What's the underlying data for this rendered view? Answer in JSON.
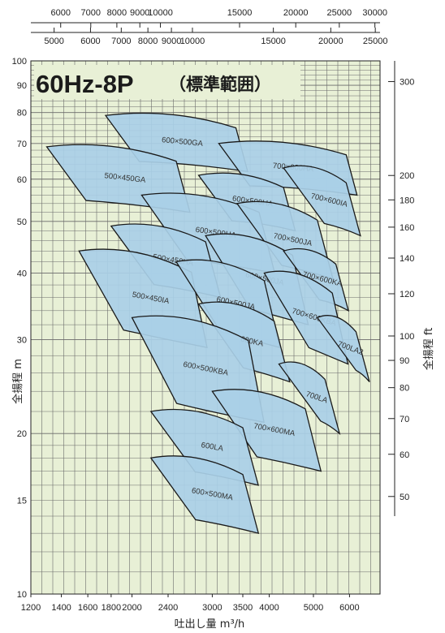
{
  "chart_data": {
    "type": "area",
    "title": "60Hz-8P",
    "subtitle": "（標準範囲）",
    "xlabel": "吐出し量 m³/h",
    "ylabel_left": "全揚程 m",
    "ylabel_right": "全揚程 ft",
    "x_scale": "log",
    "y_scale": "log",
    "xlim": [
      1200,
      7000
    ],
    "ylim": [
      10,
      100
    ],
    "grid": true,
    "x_ticks_bottom": [
      {
        "value": 1200,
        "label": "1200"
      },
      {
        "value": 1400,
        "label": "1400"
      },
      {
        "value": 1600,
        "label": "1600"
      },
      {
        "value": 1800,
        "label": "1800"
      },
      {
        "value": 2000,
        "label": "2000"
      },
      {
        "value": 2400,
        "label": "2400"
      },
      {
        "value": 3000,
        "label": "3000"
      },
      {
        "value": 3500,
        "label": "3500"
      },
      {
        "value": 4000,
        "label": "4000"
      },
      {
        "value": 5000,
        "label": "5000"
      },
      {
        "value": 6000,
        "label": "6000"
      }
    ],
    "y_ticks_left": [
      {
        "value": 10,
        "label": "10"
      },
      {
        "value": 15,
        "label": "15"
      },
      {
        "value": 20,
        "label": "20"
      },
      {
        "value": 30,
        "label": "30"
      },
      {
        "value": 40,
        "label": "40"
      },
      {
        "value": 50,
        "label": "50"
      },
      {
        "value": 60,
        "label": "60"
      },
      {
        "value": 70,
        "label": "70"
      },
      {
        "value": 80,
        "label": "80"
      },
      {
        "value": 90,
        "label": "90"
      },
      {
        "value": 100,
        "label": "100"
      }
    ],
    "top_axis_upper": {
      "unit_label": "",
      "ticks": [
        {
          "label": "6000",
          "value": 6000
        },
        {
          "label": "7000",
          "value": 7000
        },
        {
          "label": "8000",
          "value": 8000
        },
        {
          "label": "9000",
          "value": 9000
        },
        {
          "label": "10000",
          "value": 10000
        },
        {
          "label": "15000",
          "value": 15000
        },
        {
          "label": "20000",
          "value": 20000
        },
        {
          "label": "25000",
          "value": 25000
        },
        {
          "label": "30000",
          "value": 30000
        }
      ]
    },
    "top_axis_lower": {
      "unit_label": "",
      "ticks": [
        {
          "label": "5000",
          "value": 5000
        },
        {
          "label": "6000",
          "value": 6000
        },
        {
          "label": "7000",
          "value": 7000
        },
        {
          "label": "8000",
          "value": 8000
        },
        {
          "label": "9000",
          "value": 9000
        },
        {
          "label": "10000",
          "value": 10000
        },
        {
          "label": "15000",
          "value": 15000
        },
        {
          "label": "20000",
          "value": 20000
        },
        {
          "label": "25000",
          "value": 25000
        }
      ]
    },
    "right_axis_ft": [
      {
        "value": 50,
        "label": "50"
      },
      {
        "value": 60,
        "label": "60"
      },
      {
        "value": 70,
        "label": "70"
      },
      {
        "value": 80,
        "label": "80"
      },
      {
        "value": 90,
        "label": "90"
      },
      {
        "value": 100,
        "label": "100"
      },
      {
        "value": 120,
        "label": "120"
      },
      {
        "value": 140,
        "label": "140"
      },
      {
        "value": 160,
        "label": "160"
      },
      {
        "value": 180,
        "label": "180"
      },
      {
        "value": 200,
        "label": "200"
      },
      {
        "value": 300,
        "label": "300"
      }
    ],
    "regions": [
      {
        "name": "600×500GA",
        "q": [
          1750,
          3380
        ],
        "h": [
          62,
          79
        ]
      },
      {
        "name": "500×450GA",
        "q": [
          1300,
          2500
        ],
        "h": [
          52,
          69
        ]
      },
      {
        "name": "700×600HA",
        "q": [
          3100,
          5900
        ],
        "h": [
          56,
          70
        ]
      },
      {
        "name": "600×500HA",
        "q": [
          2800,
          4300
        ],
        "h": [
          48,
          61
        ]
      },
      {
        "name": "700×600IA",
        "q": [
          4300,
          5900
        ],
        "h": [
          47,
          63
        ]
      },
      {
        "name": "600×500HA",
        "q": [
          2100,
          3800
        ],
        "h": [
          40,
          56
        ]
      },
      {
        "name": "700×500JA",
        "q": [
          3400,
          5100
        ],
        "h": [
          39,
          54
        ]
      },
      {
        "name": "500×450HA",
        "q": [
          1800,
          2900
        ],
        "h": [
          36,
          49
        ]
      },
      {
        "name": "600×500JA",
        "q": [
          2900,
          4500
        ],
        "h": [
          32,
          47
        ]
      },
      {
        "name": "500×450IA",
        "q": [
          1530,
          2700
        ],
        "h": [
          29,
          44
        ]
      },
      {
        "name": "600×500JA",
        "q": [
          2500,
          3900
        ],
        "h": [
          29,
          42
        ]
      },
      {
        "name": "700×600KA",
        "q": [
          4300,
          5600
        ],
        "h": [
          34,
          44
        ]
      },
      {
        "name": "700×600KBA",
        "q": [
          3900,
          5500
        ],
        "h": [
          27,
          40
        ]
      },
      {
        "name": "600KA",
        "q": [
          2800,
          4100
        ],
        "h": [
          25,
          35
        ]
      },
      {
        "name": "700LA2",
        "q": [
          5100,
          6200
        ],
        "h": [
          25,
          33
        ]
      },
      {
        "name": "600×500KBA",
        "q": [
          2000,
          3600
        ],
        "h": [
          21,
          33
        ]
      },
      {
        "name": "700LA",
        "q": [
          4200,
          5300
        ],
        "h": [
          20,
          27
        ]
      },
      {
        "name": "700×600MA",
        "q": [
          3000,
          4800
        ],
        "h": [
          17,
          24
        ]
      },
      {
        "name": "600LA",
        "q": [
          2200,
          3500
        ],
        "h": [
          16,
          22
        ]
      },
      {
        "name": "600×500MA",
        "q": [
          2200,
          3500
        ],
        "h": [
          13,
          18
        ]
      }
    ]
  },
  "colors": {
    "plot_bg": "#e8f0d6",
    "grid": "#555555",
    "region_fill": "#a9cfe7",
    "region_stroke": "#1a1a1a"
  }
}
